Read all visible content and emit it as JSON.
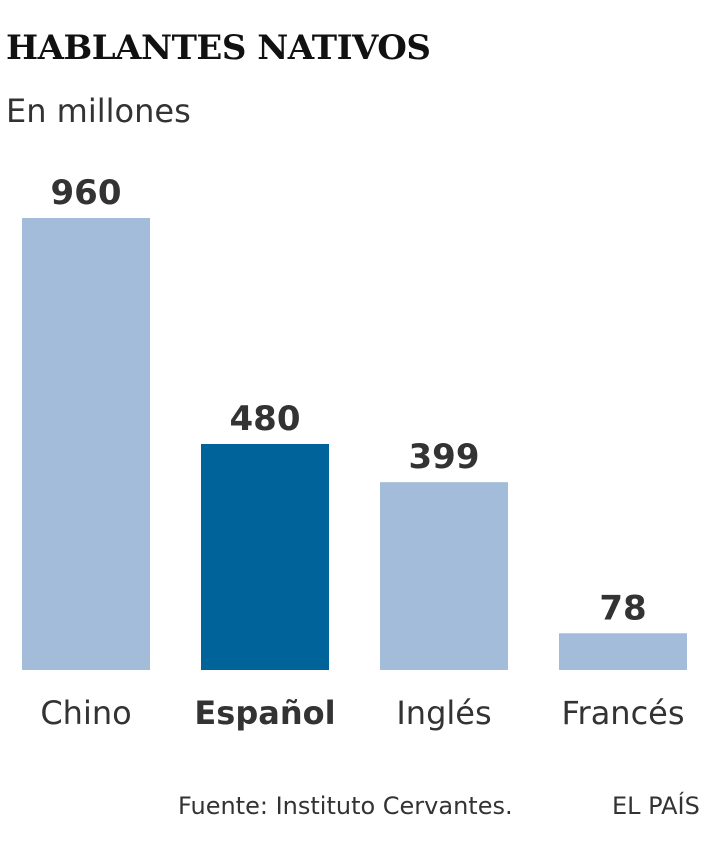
{
  "chart_data": {
    "type": "bar",
    "title": "HABLANTES NATIVOS",
    "subtitle": "En millones",
    "categories": [
      "Chino",
      "Español",
      "Inglés",
      "Francés"
    ],
    "values": [
      960,
      480,
      399,
      78
    ],
    "highlight": "Español",
    "ylim": [
      0,
      960
    ],
    "grid": false,
    "legend": "none",
    "colors": {
      "bar": "#a3bcd9",
      "highlight": "#00649a",
      "value_label": "#333333",
      "category_label": "#333333"
    }
  },
  "footer": {
    "source": "Fuente: Instituto Cervantes.",
    "brand": "EL PAÍS"
  }
}
